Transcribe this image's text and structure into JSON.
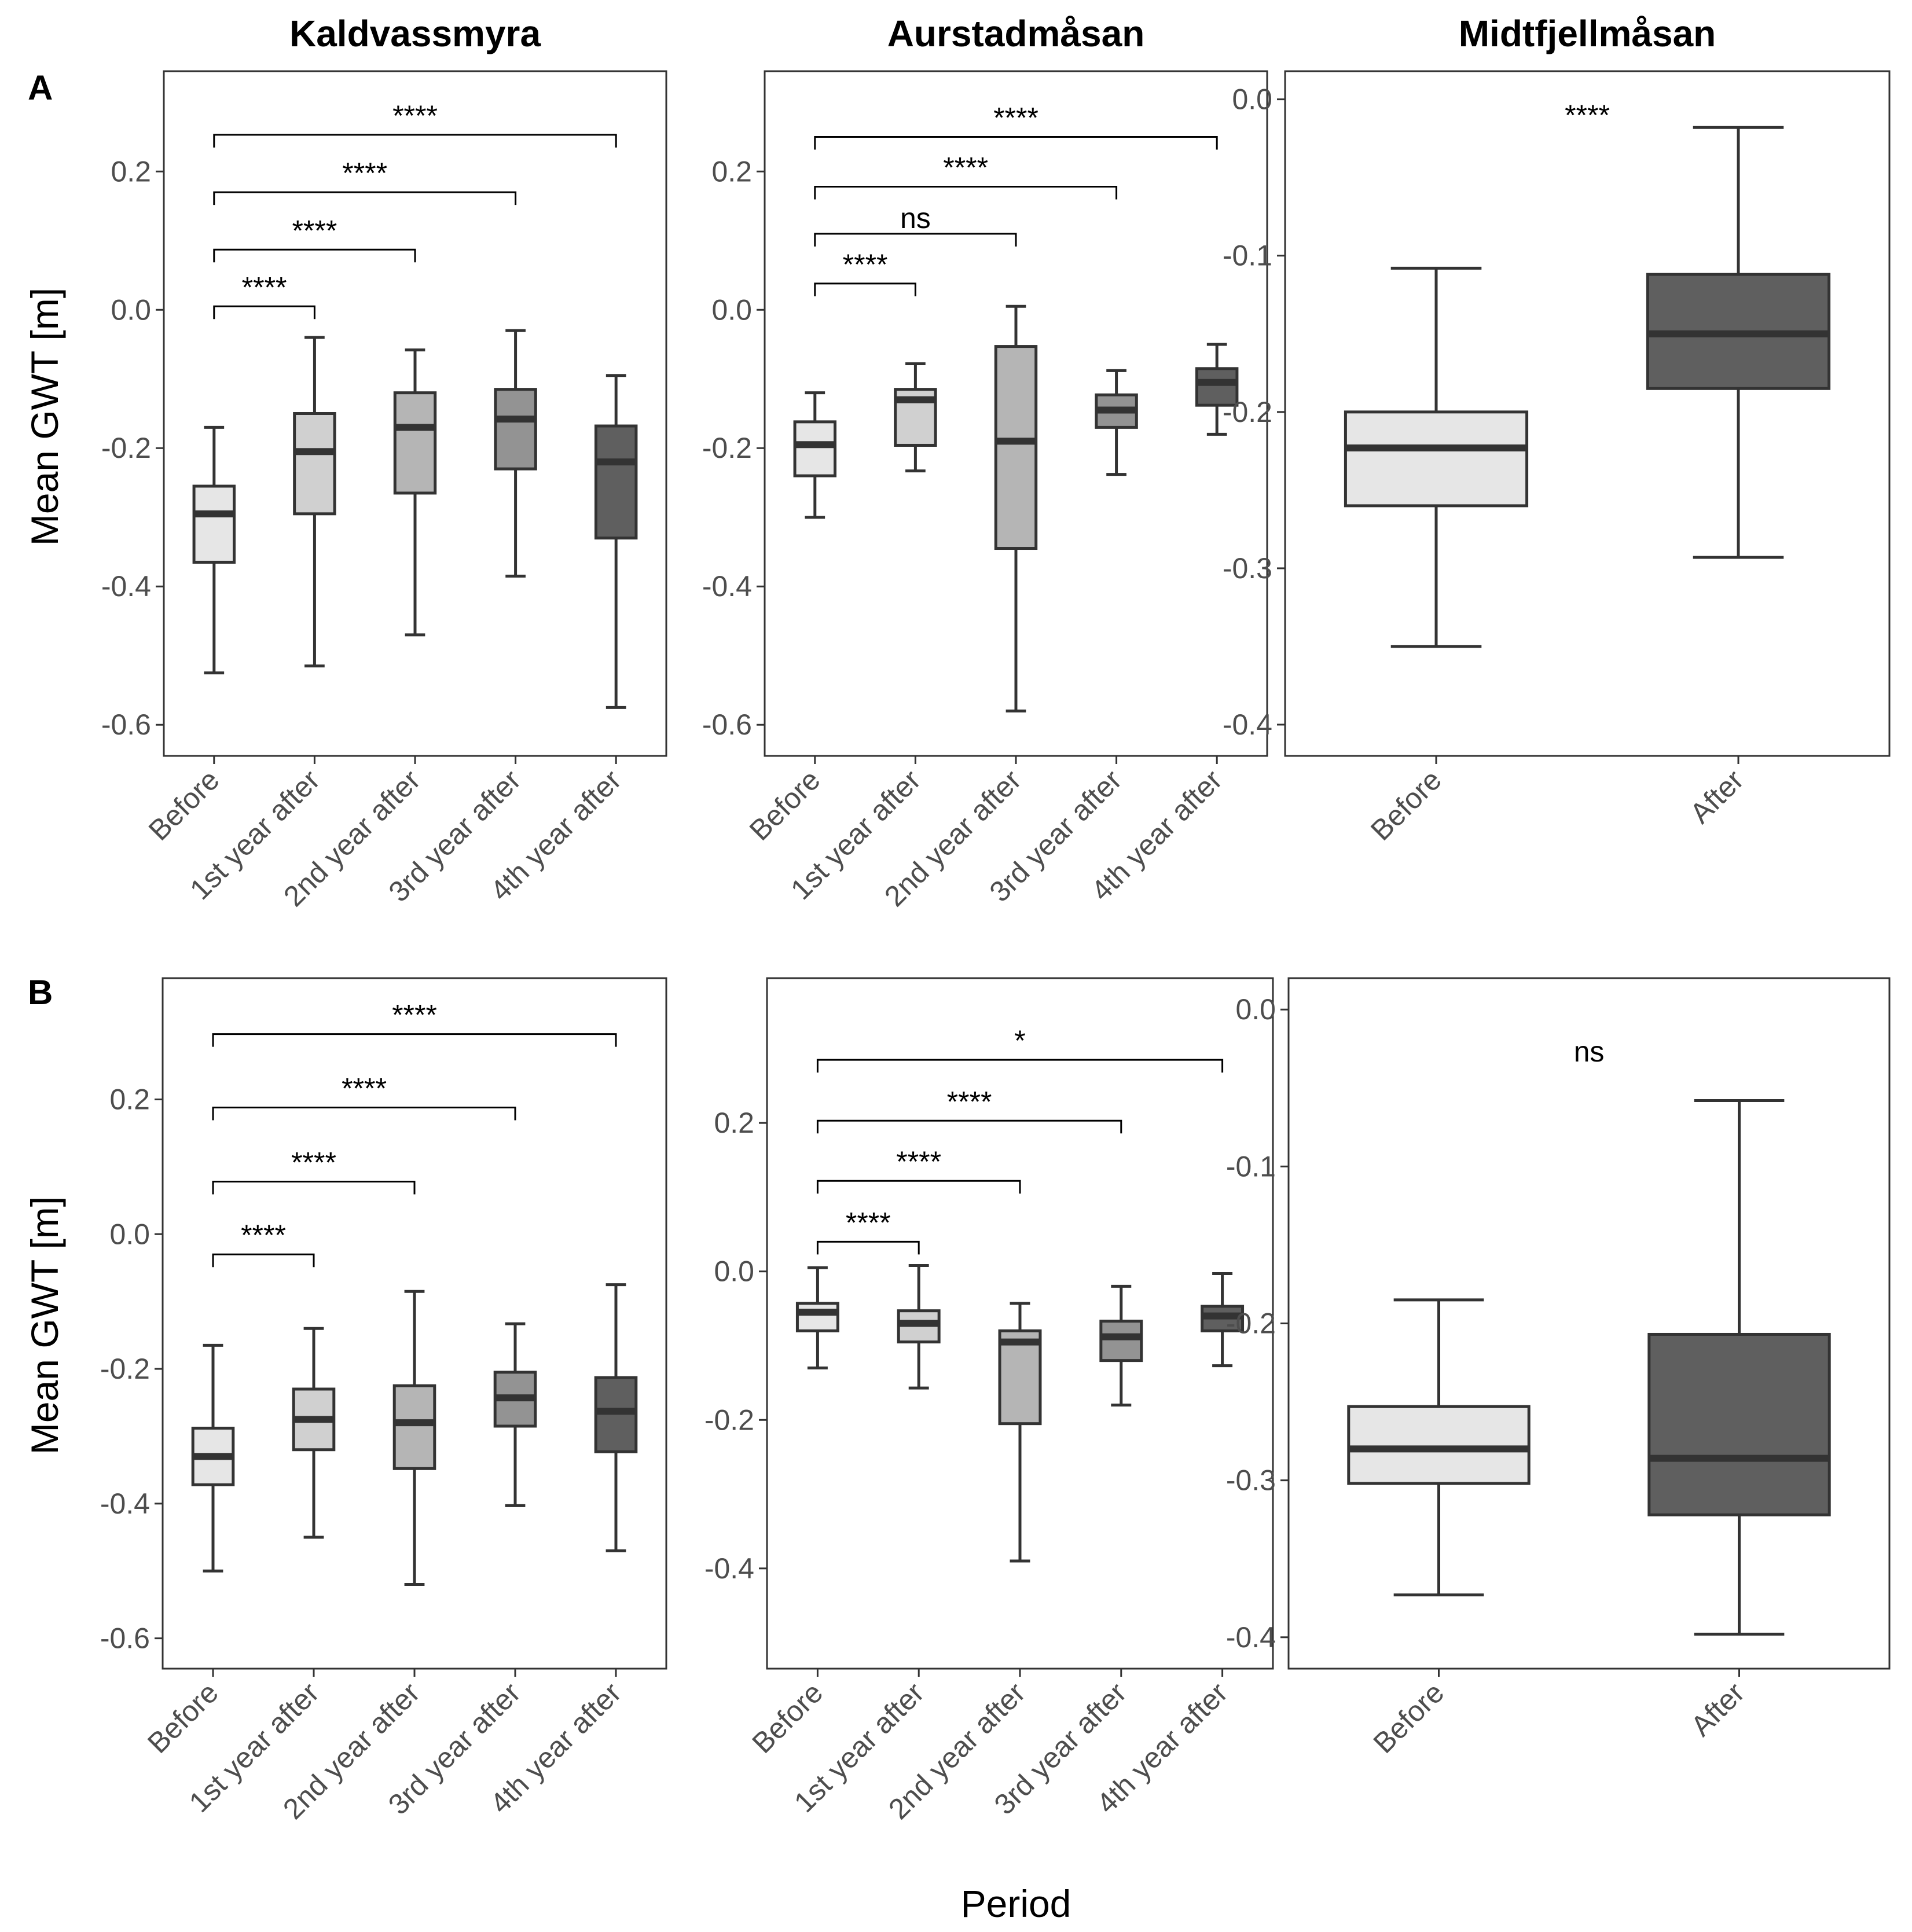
{
  "figure": {
    "ylabel": "Mean GWT [m]",
    "xlabel": "Period",
    "row_labels": [
      "A",
      "B"
    ],
    "titles": [
      "Kaldvassmyra",
      "Aurstadmåsan",
      "Midtfjellmåsan"
    ],
    "fill_colors": {
      "Before": "#e6e6e6",
      "1st year after": "#d0d0d0",
      "2nd year after": "#b5b5b5",
      "3rd year after": "#939393",
      "4th year after": "#5f5f5f",
      "After": "#5f5f5f"
    }
  },
  "chart_data": [
    {
      "type": "boxplot",
      "row": "A",
      "title": "Kaldvassmyra",
      "categories": [
        "Before",
        "1st year after",
        "2nd year after",
        "3rd year after",
        "4th year after"
      ],
      "yticks": [
        0.2,
        0.0,
        -0.2,
        -0.4,
        -0.6
      ],
      "ytick_labels": [
        "0.2",
        "0.0",
        "-0.2",
        "-0.4",
        "-0.6"
      ],
      "ylim": [
        -0.645,
        0.345
      ],
      "ylabel": "Mean GWT [m]",
      "boxes": [
        {
          "category": "Before",
          "min": -0.525,
          "q1": -0.365,
          "median": -0.295,
          "q3": -0.255,
          "max": -0.17
        },
        {
          "category": "1st year after",
          "min": -0.515,
          "q1": -0.295,
          "median": -0.205,
          "q3": -0.15,
          "max": -0.04
        },
        {
          "category": "2nd year after",
          "min": -0.47,
          "q1": -0.265,
          "median": -0.17,
          "q3": -0.12,
          "max": -0.058
        },
        {
          "category": "3rd year after",
          "min": -0.385,
          "q1": -0.23,
          "median": -0.158,
          "q3": -0.115,
          "max": -0.03
        },
        {
          "category": "4th year after",
          "min": -0.575,
          "q1": -0.33,
          "median": -0.22,
          "q3": -0.168,
          "max": -0.095
        }
      ],
      "comparisons": [
        {
          "from": "Before",
          "to": "1st year after",
          "y": 0.005,
          "label": "****"
        },
        {
          "from": "Before",
          "to": "2nd year after",
          "y": 0.087,
          "label": "****"
        },
        {
          "from": "Before",
          "to": "3rd year after",
          "y": 0.17,
          "label": "****"
        },
        {
          "from": "Before",
          "to": "4th year after",
          "y": 0.253,
          "label": "****"
        }
      ]
    },
    {
      "type": "boxplot",
      "row": "A",
      "title": "Aurstadmåsan",
      "categories": [
        "Before",
        "1st year after",
        "2nd year after",
        "3rd year after",
        "4th year after"
      ],
      "yticks": [
        0.2,
        0.0,
        -0.2,
        -0.4,
        -0.6
      ],
      "ytick_labels": [
        "0.2",
        "0.0",
        "-0.2",
        "-0.4",
        "-0.6"
      ],
      "ylim": [
        -0.645,
        0.345
      ],
      "ylabel": "Mean GWT [m]",
      "boxes": [
        {
          "category": "Before",
          "min": -0.3,
          "q1": -0.24,
          "median": -0.195,
          "q3": -0.162,
          "max": -0.12
        },
        {
          "category": "1st year after",
          "min": -0.233,
          "q1": -0.196,
          "median": -0.13,
          "q3": -0.115,
          "max": -0.078
        },
        {
          "category": "2nd year after",
          "min": -0.58,
          "q1": -0.345,
          "median": -0.19,
          "q3": -0.053,
          "max": 0.005
        },
        {
          "category": "3rd year after",
          "min": -0.238,
          "q1": -0.17,
          "median": -0.145,
          "q3": -0.123,
          "max": -0.088
        },
        {
          "category": "4th year after",
          "min": -0.18,
          "q1": -0.138,
          "median": -0.105,
          "q3": -0.085,
          "max": -0.05
        }
      ],
      "comparisons": [
        {
          "from": "Before",
          "to": "1st year after",
          "y": 0.038,
          "label": "****"
        },
        {
          "from": "Before",
          "to": "2nd year after",
          "y": 0.11,
          "label": "ns"
        },
        {
          "from": "Before",
          "to": "3rd year after",
          "y": 0.178,
          "label": "****"
        },
        {
          "from": "Before",
          "to": "4th year after",
          "y": 0.25,
          "label": "****"
        }
      ]
    },
    {
      "type": "boxplot",
      "row": "A",
      "title": "Midtfjellmåsan",
      "categories": [
        "Before",
        "After"
      ],
      "yticks": [
        0.0,
        -0.1,
        -0.2,
        -0.3,
        -0.4
      ],
      "ytick_labels": [
        "0.0",
        "-0.1",
        "-0.2",
        "-0.3",
        "-0.4"
      ],
      "ylim": [
        -0.42,
        0.018
      ],
      "ylabel": "Mean GWT [m]",
      "boxes": [
        {
          "category": "Before",
          "min": -0.35,
          "q1": -0.26,
          "median": -0.223,
          "q3": -0.2,
          "max": -0.108
        },
        {
          "category": "After",
          "min": -0.293,
          "q1": -0.185,
          "median": -0.15,
          "q3": -0.112,
          "max": -0.018
        }
      ],
      "overall_label": {
        "text": "****",
        "y": -0.012
      }
    },
    {
      "type": "boxplot",
      "row": "B",
      "title": "Kaldvassmyra",
      "categories": [
        "Before",
        "1st year after",
        "2nd year after",
        "3rd year after",
        "4th year after"
      ],
      "yticks": [
        0.2,
        0.0,
        -0.2,
        -0.4,
        -0.6
      ],
      "ytick_labels": [
        "0.2",
        "0.0",
        "-0.2",
        "-0.4",
        "-0.6"
      ],
      "ylim": [
        -0.645,
        0.38
      ],
      "ylabel": "Mean GWT [m]",
      "boxes": [
        {
          "category": "Before",
          "min": -0.5,
          "q1": -0.372,
          "median": -0.33,
          "q3": -0.288,
          "max": -0.165
        },
        {
          "category": "1st year after",
          "min": -0.45,
          "q1": -0.32,
          "median": -0.275,
          "q3": -0.23,
          "max": -0.14
        },
        {
          "category": "2nd year after",
          "min": -0.52,
          "q1": -0.348,
          "median": -0.28,
          "q3": -0.225,
          "max": -0.085
        },
        {
          "category": "3rd year after",
          "min": -0.403,
          "q1": -0.285,
          "median": -0.243,
          "q3": -0.205,
          "max": -0.133
        },
        {
          "category": "4th year after",
          "min": -0.47,
          "q1": -0.323,
          "median": -0.263,
          "q3": -0.213,
          "max": -0.075
        }
      ],
      "comparisons": [
        {
          "from": "Before",
          "to": "1st year after",
          "y": -0.03,
          "label": "****"
        },
        {
          "from": "Before",
          "to": "2nd year after",
          "y": 0.078,
          "label": "****"
        },
        {
          "from": "Before",
          "to": "3rd year after",
          "y": 0.188,
          "label": "****"
        },
        {
          "from": "Before",
          "to": "4th year after",
          "y": 0.297,
          "label": "****"
        }
      ]
    },
    {
      "type": "boxplot",
      "row": "B",
      "title": "Aurstadmåsan",
      "categories": [
        "Before",
        "1st year after",
        "2nd year after",
        "3rd year after",
        "4th year after"
      ],
      "yticks": [
        0.2,
        0.0,
        -0.2,
        -0.4
      ],
      "ytick_labels": [
        "0.2",
        "0.0",
        "-0.2",
        "-0.4"
      ],
      "ylim": [
        -0.535,
        0.395
      ],
      "ylabel": "Mean GWT [m]",
      "boxes": [
        {
          "category": "Before",
          "min": -0.13,
          "q1": -0.08,
          "median": -0.055,
          "q3": -0.043,
          "max": 0.005
        },
        {
          "category": "1st year after",
          "min": -0.157,
          "q1": -0.095,
          "median": -0.07,
          "q3": -0.053,
          "max": 0.008
        },
        {
          "category": "2nd year after",
          "min": -0.39,
          "q1": -0.205,
          "median": -0.095,
          "q3": -0.08,
          "max": -0.043
        },
        {
          "category": "3rd year after",
          "min": -0.18,
          "q1": -0.12,
          "median": -0.088,
          "q3": -0.067,
          "max": -0.02
        },
        {
          "category": "4th year after",
          "min": -0.127,
          "q1": -0.08,
          "median": -0.06,
          "q3": -0.047,
          "max": -0.003
        }
      ],
      "comparisons": [
        {
          "from": "Before",
          "to": "1st year after",
          "y": 0.04,
          "label": "****"
        },
        {
          "from": "Before",
          "to": "2nd year after",
          "y": 0.122,
          "label": "****"
        },
        {
          "from": "Before",
          "to": "3rd year after",
          "y": 0.203,
          "label": "****"
        },
        {
          "from": "Before",
          "to": "4th year after",
          "y": 0.285,
          "label": "*"
        }
      ]
    },
    {
      "type": "boxplot",
      "row": "B",
      "title": "Midtfjellmåsan",
      "categories": [
        "Before",
        "After"
      ],
      "yticks": [
        0.0,
        -0.1,
        -0.2,
        -0.3,
        -0.4
      ],
      "ytick_labels": [
        "0.0",
        "-0.1",
        "-0.2",
        "-0.3",
        "-0.4"
      ],
      "ylim": [
        -0.42,
        0.02
      ],
      "ylabel": "Mean GWT [m]",
      "boxes": [
        {
          "category": "Before",
          "min": -0.373,
          "q1": -0.302,
          "median": -0.28,
          "q3": -0.253,
          "max": -0.185
        },
        {
          "category": "After",
          "min": -0.398,
          "q1": -0.322,
          "median": -0.286,
          "q3": -0.207,
          "max": -0.058
        }
      ],
      "overall_label": {
        "text": "ns",
        "y": -0.025
      }
    }
  ]
}
